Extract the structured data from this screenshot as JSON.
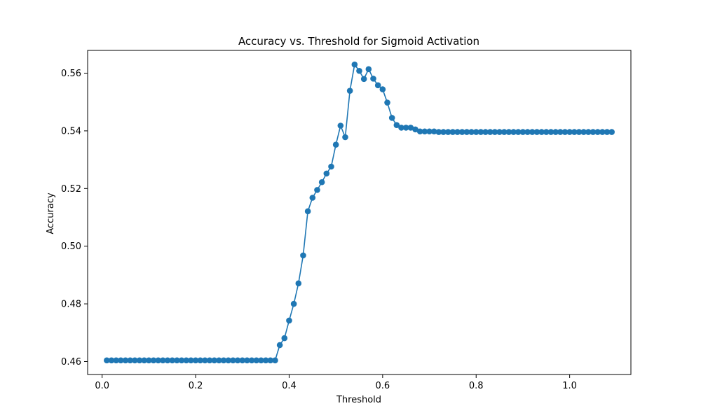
{
  "chart_data": {
    "type": "line",
    "title": "Accuracy vs. Threshold for Sigmoid Activation",
    "xlabel": "Threshold",
    "ylabel": "Accuracy",
    "xlim": [
      -0.031,
      1.131
    ],
    "ylim": [
      0.4555,
      0.5679
    ],
    "xticks": [
      0.0,
      0.2,
      0.4,
      0.6,
      0.8,
      1.0
    ],
    "xtick_labels": [
      "0.0",
      "0.2",
      "0.4",
      "0.6",
      "0.8",
      "1.0"
    ],
    "yticks": [
      0.46,
      0.48,
      0.5,
      0.52,
      0.54,
      0.56
    ],
    "ytick_labels": [
      "0.46",
      "0.48",
      "0.50",
      "0.52",
      "0.54",
      "0.56"
    ],
    "grid": false,
    "marker": "circle",
    "color": "#1f77b4",
    "series": [
      {
        "x": [
          0.01,
          0.02,
          0.03,
          0.04,
          0.05,
          0.06,
          0.07,
          0.08,
          0.09,
          0.1,
          0.11,
          0.12,
          0.13,
          0.14,
          0.15,
          0.16,
          0.17,
          0.18,
          0.19,
          0.2,
          0.21,
          0.22,
          0.23,
          0.24,
          0.25,
          0.26,
          0.27,
          0.28,
          0.29,
          0.3,
          0.31,
          0.32,
          0.33,
          0.34,
          0.35,
          0.36,
          0.37,
          0.38,
          0.39,
          0.4,
          0.41,
          0.42,
          0.43,
          0.44,
          0.45,
          0.46,
          0.47,
          0.48,
          0.49,
          0.5,
          0.51,
          0.52,
          0.53,
          0.54,
          0.55,
          0.56,
          0.57,
          0.58,
          0.59,
          0.6,
          0.61,
          0.62,
          0.63,
          0.64,
          0.65,
          0.66,
          0.67,
          0.68,
          0.69,
          0.7,
          0.71,
          0.72,
          0.73,
          0.74,
          0.75,
          0.76,
          0.77,
          0.78,
          0.79,
          0.8,
          0.81,
          0.82,
          0.83,
          0.84,
          0.85,
          0.86,
          0.87,
          0.88,
          0.89,
          0.9,
          0.91,
          0.92,
          0.93,
          0.94,
          0.95,
          0.96,
          0.97,
          0.98,
          0.99,
          1.0,
          1.01,
          1.02,
          1.03,
          1.04,
          1.05,
          1.06,
          1.07,
          1.08,
          1.09
        ],
        "y": [
          0.4604,
          0.4604,
          0.4604,
          0.4604,
          0.4604,
          0.4604,
          0.4604,
          0.4604,
          0.4604,
          0.4604,
          0.4604,
          0.4604,
          0.4604,
          0.4604,
          0.4604,
          0.4604,
          0.4604,
          0.4604,
          0.4604,
          0.4604,
          0.4604,
          0.4604,
          0.4604,
          0.4604,
          0.4604,
          0.4604,
          0.4604,
          0.4604,
          0.4604,
          0.4604,
          0.4604,
          0.4604,
          0.4604,
          0.4604,
          0.4604,
          0.4604,
          0.4604,
          0.4657,
          0.4681,
          0.4742,
          0.48,
          0.4871,
          0.4968,
          0.5121,
          0.5168,
          0.5195,
          0.5222,
          0.5252,
          0.5276,
          0.5352,
          0.5418,
          0.5378,
          0.5539,
          0.563,
          0.5608,
          0.558,
          0.5614,
          0.5581,
          0.5558,
          0.5544,
          0.5498,
          0.5445,
          0.542,
          0.5411,
          0.5411,
          0.5411,
          0.5405,
          0.5398,
          0.5398,
          0.5398,
          0.5398,
          0.5396,
          0.5396,
          0.5396,
          0.5396,
          0.5396,
          0.5396,
          0.5396,
          0.5396,
          0.5396,
          0.5396,
          0.5396,
          0.5396,
          0.5396,
          0.5396,
          0.5396,
          0.5396,
          0.5396,
          0.5396,
          0.5396,
          0.5396,
          0.5396,
          0.5396,
          0.5396,
          0.5396,
          0.5396,
          0.5396,
          0.5396,
          0.5396,
          0.5396,
          0.5396,
          0.5396,
          0.5396,
          0.5396,
          0.5396,
          0.5396,
          0.5396,
          0.5396,
          0.5396
        ]
      }
    ]
  }
}
